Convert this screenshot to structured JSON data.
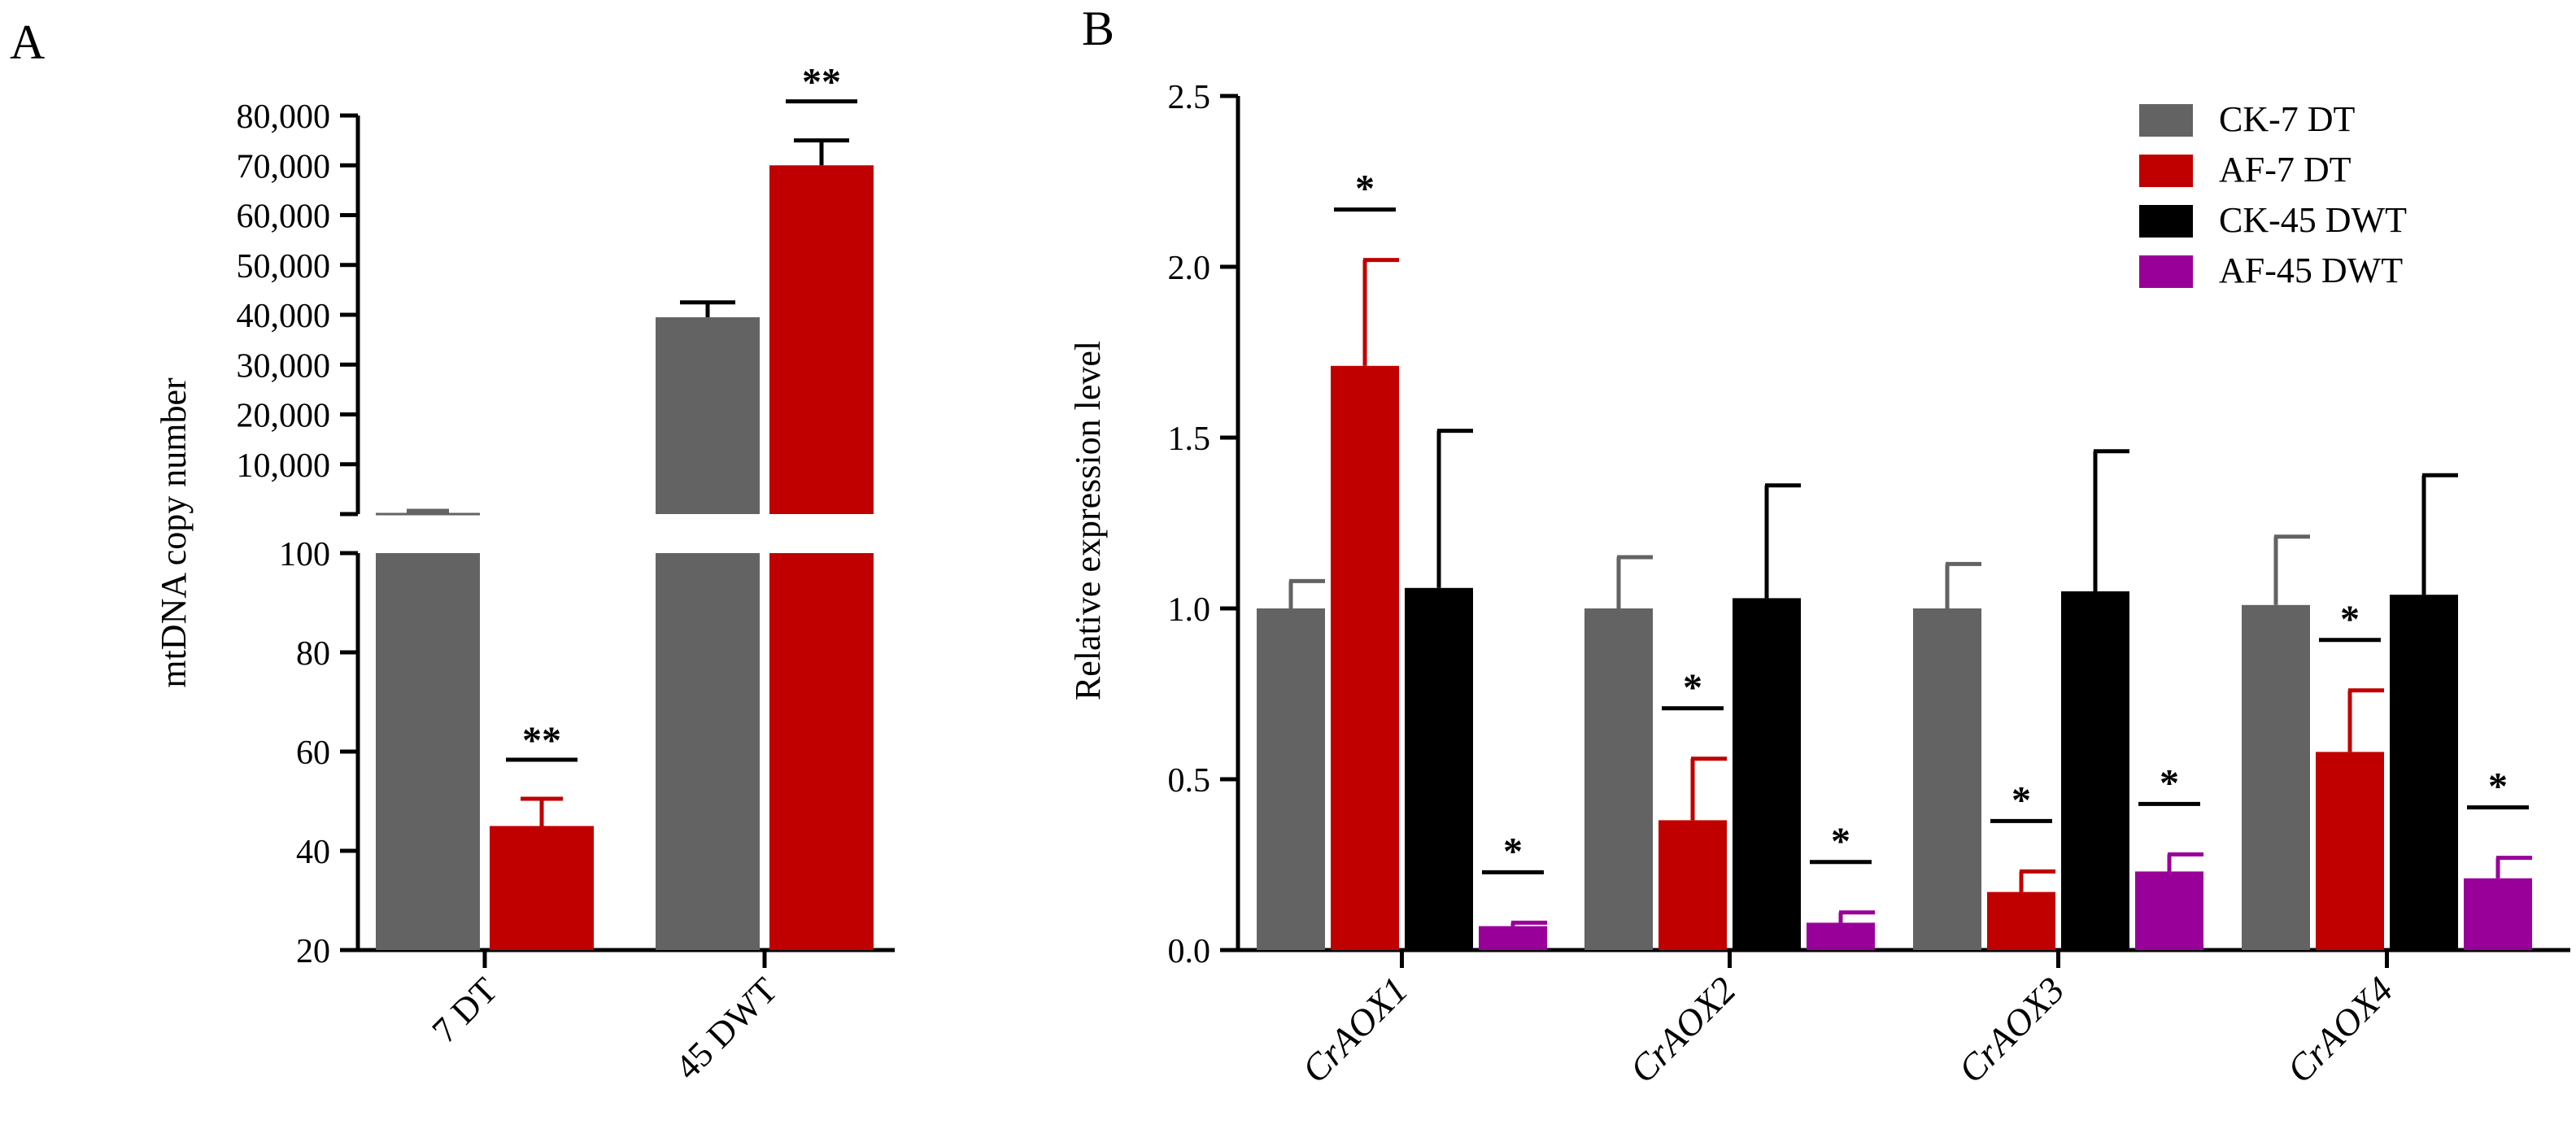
{
  "panel_labels": {
    "a": "A",
    "b": "B"
  },
  "colors": {
    "ck7": "#636363",
    "af7": "#c00000",
    "ck45": "#000000",
    "af45": "#990099",
    "axis": "#000000"
  },
  "chart_data": [
    {
      "type": "bar",
      "panel": "A",
      "title": "",
      "ylabel": "mtDNA copy number",
      "xlabel": "",
      "categories": [
        "7 DT",
        "45 DWT"
      ],
      "broken_axis": true,
      "lower_ylim": [
        20,
        100
      ],
      "lower_ticks": [
        20,
        40,
        60,
        80,
        100
      ],
      "upper_ylim": [
        0,
        80000
      ],
      "upper_ticks": [
        10000,
        20000,
        30000,
        40000,
        50000,
        60000,
        70000,
        80000
      ],
      "upper_tick_labels": [
        "10,000",
        "20,000",
        "30,000",
        "40,000",
        "50,000",
        "60,000",
        "70,000",
        "80,000"
      ],
      "series": [
        {
          "name": "CK",
          "color_key": "ck7",
          "values": [
            100,
            39500
          ],
          "errors": [
            0,
            3000
          ]
        },
        {
          "name": "AF",
          "color_key": "af7",
          "values": [
            45,
            70000
          ],
          "errors": [
            5.5,
            5000
          ]
        }
      ],
      "annotations": [
        {
          "text": "**",
          "category": "7 DT"
        },
        {
          "text": "**",
          "category": "45 DWT"
        }
      ]
    },
    {
      "type": "bar",
      "panel": "B",
      "title": "",
      "ylabel": "Relative expression level",
      "xlabel": "",
      "ylim": [
        0,
        2.5
      ],
      "ticks": [
        0,
        0.5,
        1,
        1.5,
        2,
        2.5
      ],
      "tick_labels": [
        "0.0",
        "0.5",
        "1.0",
        "1.5",
        "2.0",
        "2.5"
      ],
      "categories": [
        "CrAOX1",
        "CrAOX2",
        "CrAOX3",
        "CrAOX4"
      ],
      "legend_position": "top-right",
      "series": [
        {
          "name": "CK-7 DT",
          "color_key": "ck7",
          "values": [
            1.0,
            1.0,
            1.0,
            1.01
          ],
          "errors": [
            0.08,
            0.15,
            0.13,
            0.2
          ]
        },
        {
          "name": "AF-7 DT",
          "color_key": "af7",
          "values": [
            1.71,
            0.38,
            0.17,
            0.58
          ],
          "errors": [
            0.31,
            0.18,
            0.06,
            0.18
          ]
        },
        {
          "name": "CK-45 DWT",
          "color_key": "ck45",
          "values": [
            1.06,
            1.03,
            1.05,
            1.04
          ],
          "errors": [
            0.46,
            0.33,
            0.41,
            0.35
          ]
        },
        {
          "name": "AF-45 DWT",
          "color_key": "af45",
          "values": [
            0.07,
            0.08,
            0.23,
            0.21
          ],
          "errors": [
            0.01,
            0.03,
            0.05,
            0.06
          ]
        }
      ],
      "annotations": [
        {
          "text": "*",
          "category": "CrAOX1",
          "series": "AF-7 DT"
        },
        {
          "text": "*",
          "category": "CrAOX1",
          "series": "AF-45 DWT"
        },
        {
          "text": "*",
          "category": "CrAOX2",
          "series": "AF-7 DT"
        },
        {
          "text": "*",
          "category": "CrAOX2",
          "series": "AF-45 DWT"
        },
        {
          "text": "*",
          "category": "CrAOX3",
          "series": "AF-7 DT"
        },
        {
          "text": "*",
          "category": "CrAOX3",
          "series": "AF-45 DWT"
        },
        {
          "text": "*",
          "category": "CrAOX4",
          "series": "AF-7 DT"
        },
        {
          "text": "*",
          "category": "CrAOX4",
          "series": "AF-45 DWT"
        }
      ]
    }
  ]
}
